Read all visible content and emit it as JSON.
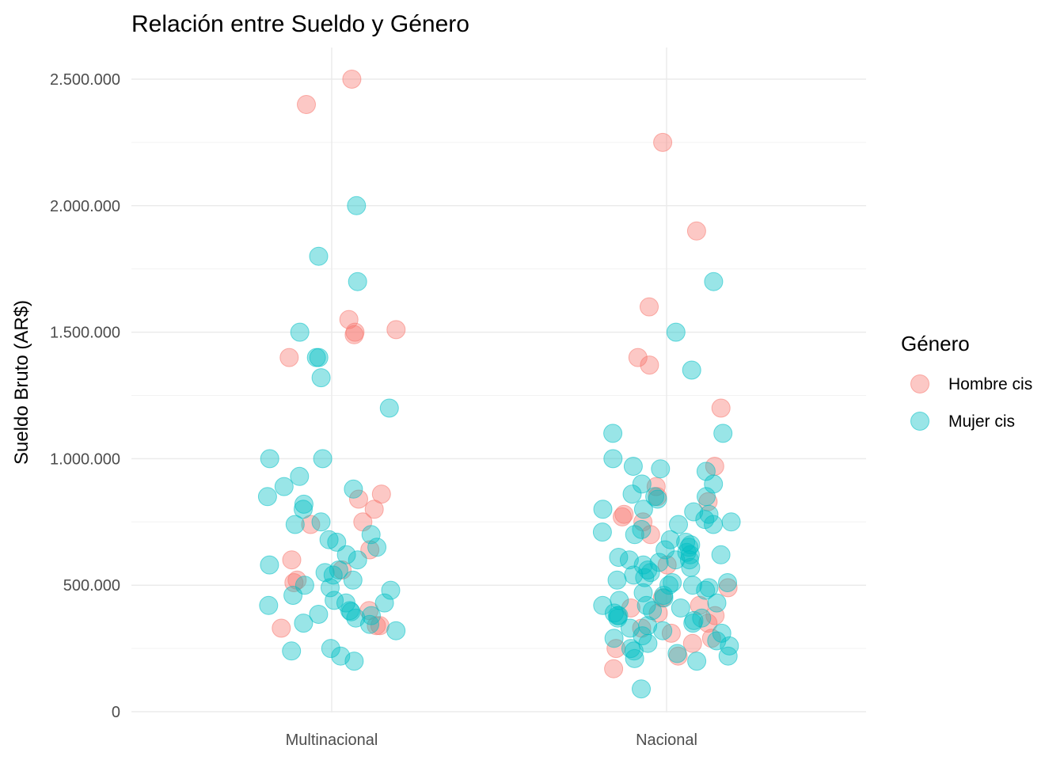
{
  "chart_data": {
    "type": "scatter",
    "title": "Relación entre Sueldo y Género",
    "xlabel": "",
    "ylabel": "Sueldo Bruto (AR$)",
    "categories": [
      "Multinacional",
      "Nacional"
    ],
    "ylim": [
      0,
      2500000
    ],
    "yticks": [
      0,
      500000,
      1000000,
      1500000,
      2000000,
      2500000
    ],
    "ytick_labels": [
      "0",
      "500.000",
      "1.000.000",
      "1.500.000",
      "2.000.000",
      "2.500.000"
    ],
    "grid": true,
    "jitter": true,
    "legend": {
      "title": "Género",
      "position": "right"
    },
    "series": [
      {
        "name": "Hombre cis",
        "color": "#F8766D",
        "points": [
          {
            "x": "Multinacional",
            "y": 2500000
          },
          {
            "x": "Multinacional",
            "y": 2400000
          },
          {
            "x": "Multinacional",
            "y": 1550000
          },
          {
            "x": "Multinacional",
            "y": 1510000
          },
          {
            "x": "Multinacional",
            "y": 1500000
          },
          {
            "x": "Multinacional",
            "y": 1490000
          },
          {
            "x": "Multinacional",
            "y": 1400000
          },
          {
            "x": "Multinacional",
            "y": 860000
          },
          {
            "x": "Multinacional",
            "y": 840000
          },
          {
            "x": "Multinacional",
            "y": 800000
          },
          {
            "x": "Multinacional",
            "y": 750000
          },
          {
            "x": "Multinacional",
            "y": 740000
          },
          {
            "x": "Multinacional",
            "y": 640000
          },
          {
            "x": "Multinacional",
            "y": 600000
          },
          {
            "x": "Multinacional",
            "y": 560000
          },
          {
            "x": "Multinacional",
            "y": 520000
          },
          {
            "x": "Multinacional",
            "y": 510000
          },
          {
            "x": "Multinacional",
            "y": 400000
          },
          {
            "x": "Multinacional",
            "y": 340000
          },
          {
            "x": "Multinacional",
            "y": 340000
          },
          {
            "x": "Multinacional",
            "y": 330000
          },
          {
            "x": "Nacional",
            "y": 2250000
          },
          {
            "x": "Nacional",
            "y": 1900000
          },
          {
            "x": "Nacional",
            "y": 1600000
          },
          {
            "x": "Nacional",
            "y": 1400000
          },
          {
            "x": "Nacional",
            "y": 1370000
          },
          {
            "x": "Nacional",
            "y": 1200000
          },
          {
            "x": "Nacional",
            "y": 970000
          },
          {
            "x": "Nacional",
            "y": 890000
          },
          {
            "x": "Nacional",
            "y": 850000
          },
          {
            "x": "Nacional",
            "y": 830000
          },
          {
            "x": "Nacional",
            "y": 780000
          },
          {
            "x": "Nacional",
            "y": 770000
          },
          {
            "x": "Nacional",
            "y": 750000
          },
          {
            "x": "Nacional",
            "y": 700000
          },
          {
            "x": "Nacional",
            "y": 580000
          },
          {
            "x": "Nacional",
            "y": 490000
          },
          {
            "x": "Nacional",
            "y": 450000
          },
          {
            "x": "Nacional",
            "y": 420000
          },
          {
            "x": "Nacional",
            "y": 410000
          },
          {
            "x": "Nacional",
            "y": 390000
          },
          {
            "x": "Nacional",
            "y": 380000
          },
          {
            "x": "Nacional",
            "y": 350000
          },
          {
            "x": "Nacional",
            "y": 330000
          },
          {
            "x": "Nacional",
            "y": 310000
          },
          {
            "x": "Nacional",
            "y": 290000
          },
          {
            "x": "Nacional",
            "y": 270000
          },
          {
            "x": "Nacional",
            "y": 250000
          },
          {
            "x": "Nacional",
            "y": 220000
          },
          {
            "x": "Nacional",
            "y": 170000
          }
        ]
      },
      {
        "name": "Mujer cis",
        "color": "#00BFC4",
        "points": [
          {
            "x": "Multinacional",
            "y": 2000000
          },
          {
            "x": "Multinacional",
            "y": 1800000
          },
          {
            "x": "Multinacional",
            "y": 1700000
          },
          {
            "x": "Multinacional",
            "y": 1500000
          },
          {
            "x": "Multinacional",
            "y": 1400000
          },
          {
            "x": "Multinacional",
            "y": 1400000
          },
          {
            "x": "Multinacional",
            "y": 1320000
          },
          {
            "x": "Multinacional",
            "y": 1200000
          },
          {
            "x": "Multinacional",
            "y": 1000000
          },
          {
            "x": "Multinacional",
            "y": 1000000
          },
          {
            "x": "Multinacional",
            "y": 930000
          },
          {
            "x": "Multinacional",
            "y": 890000
          },
          {
            "x": "Multinacional",
            "y": 880000
          },
          {
            "x": "Multinacional",
            "y": 850000
          },
          {
            "x": "Multinacional",
            "y": 820000
          },
          {
            "x": "Multinacional",
            "y": 800000
          },
          {
            "x": "Multinacional",
            "y": 750000
          },
          {
            "x": "Multinacional",
            "y": 740000
          },
          {
            "x": "Multinacional",
            "y": 700000
          },
          {
            "x": "Multinacional",
            "y": 680000
          },
          {
            "x": "Multinacional",
            "y": 670000
          },
          {
            "x": "Multinacional",
            "y": 650000
          },
          {
            "x": "Multinacional",
            "y": 620000
          },
          {
            "x": "Multinacional",
            "y": 600000
          },
          {
            "x": "Multinacional",
            "y": 580000
          },
          {
            "x": "Multinacional",
            "y": 560000
          },
          {
            "x": "Multinacional",
            "y": 550000
          },
          {
            "x": "Multinacional",
            "y": 540000
          },
          {
            "x": "Multinacional",
            "y": 520000
          },
          {
            "x": "Multinacional",
            "y": 500000
          },
          {
            "x": "Multinacional",
            "y": 490000
          },
          {
            "x": "Multinacional",
            "y": 480000
          },
          {
            "x": "Multinacional",
            "y": 460000
          },
          {
            "x": "Multinacional",
            "y": 440000
          },
          {
            "x": "Multinacional",
            "y": 430000
          },
          {
            "x": "Multinacional",
            "y": 430000
          },
          {
            "x": "Multinacional",
            "y": 420000
          },
          {
            "x": "Multinacional",
            "y": 400000
          },
          {
            "x": "Multinacional",
            "y": 395000
          },
          {
            "x": "Multinacional",
            "y": 385000
          },
          {
            "x": "Multinacional",
            "y": 380000
          },
          {
            "x": "Multinacional",
            "y": 370000
          },
          {
            "x": "Multinacional",
            "y": 350000
          },
          {
            "x": "Multinacional",
            "y": 345000
          },
          {
            "x": "Multinacional",
            "y": 320000
          },
          {
            "x": "Multinacional",
            "y": 250000
          },
          {
            "x": "Multinacional",
            "y": 240000
          },
          {
            "x": "Multinacional",
            "y": 220000
          },
          {
            "x": "Multinacional",
            "y": 200000
          },
          {
            "x": "Nacional",
            "y": 1700000
          },
          {
            "x": "Nacional",
            "y": 1500000
          },
          {
            "x": "Nacional",
            "y": 1350000
          },
          {
            "x": "Nacional",
            "y": 1100000
          },
          {
            "x": "Nacional",
            "y": 1100000
          },
          {
            "x": "Nacional",
            "y": 1000000
          },
          {
            "x": "Nacional",
            "y": 970000
          },
          {
            "x": "Nacional",
            "y": 960000
          },
          {
            "x": "Nacional",
            "y": 950000
          },
          {
            "x": "Nacional",
            "y": 900000
          },
          {
            "x": "Nacional",
            "y": 900000
          },
          {
            "x": "Nacional",
            "y": 860000
          },
          {
            "x": "Nacional",
            "y": 850000
          },
          {
            "x": "Nacional",
            "y": 850000
          },
          {
            "x": "Nacional",
            "y": 840000
          },
          {
            "x": "Nacional",
            "y": 800000
          },
          {
            "x": "Nacional",
            "y": 800000
          },
          {
            "x": "Nacional",
            "y": 790000
          },
          {
            "x": "Nacional",
            "y": 780000
          },
          {
            "x": "Nacional",
            "y": 760000
          },
          {
            "x": "Nacional",
            "y": 750000
          },
          {
            "x": "Nacional",
            "y": 740000
          },
          {
            "x": "Nacional",
            "y": 740000
          },
          {
            "x": "Nacional",
            "y": 720000
          },
          {
            "x": "Nacional",
            "y": 710000
          },
          {
            "x": "Nacional",
            "y": 700000
          },
          {
            "x": "Nacional",
            "y": 680000
          },
          {
            "x": "Nacional",
            "y": 670000
          },
          {
            "x": "Nacional",
            "y": 660000
          },
          {
            "x": "Nacional",
            "y": 650000
          },
          {
            "x": "Nacional",
            "y": 640000
          },
          {
            "x": "Nacional",
            "y": 630000
          },
          {
            "x": "Nacional",
            "y": 620000
          },
          {
            "x": "Nacional",
            "y": 620000
          },
          {
            "x": "Nacional",
            "y": 610000
          },
          {
            "x": "Nacional",
            "y": 600000
          },
          {
            "x": "Nacional",
            "y": 600000
          },
          {
            "x": "Nacional",
            "y": 600000
          },
          {
            "x": "Nacional",
            "y": 590000
          },
          {
            "x": "Nacional",
            "y": 580000
          },
          {
            "x": "Nacional",
            "y": 570000
          },
          {
            "x": "Nacional",
            "y": 560000
          },
          {
            "x": "Nacional",
            "y": 550000
          },
          {
            "x": "Nacional",
            "y": 540000
          },
          {
            "x": "Nacional",
            "y": 530000
          },
          {
            "x": "Nacional",
            "y": 520000
          },
          {
            "x": "Nacional",
            "y": 510000
          },
          {
            "x": "Nacional",
            "y": 510000
          },
          {
            "x": "Nacional",
            "y": 500000
          },
          {
            "x": "Nacional",
            "y": 500000
          },
          {
            "x": "Nacional",
            "y": 490000
          },
          {
            "x": "Nacional",
            "y": 480000
          },
          {
            "x": "Nacional",
            "y": 470000
          },
          {
            "x": "Nacional",
            "y": 460000
          },
          {
            "x": "Nacional",
            "y": 450000
          },
          {
            "x": "Nacional",
            "y": 440000
          },
          {
            "x": "Nacional",
            "y": 430000
          },
          {
            "x": "Nacional",
            "y": 420000
          },
          {
            "x": "Nacional",
            "y": 420000
          },
          {
            "x": "Nacional",
            "y": 410000
          },
          {
            "x": "Nacional",
            "y": 400000
          },
          {
            "x": "Nacional",
            "y": 390000
          },
          {
            "x": "Nacional",
            "y": 380000
          },
          {
            "x": "Nacional",
            "y": 380000
          },
          {
            "x": "Nacional",
            "y": 370000
          },
          {
            "x": "Nacional",
            "y": 370000
          },
          {
            "x": "Nacional",
            "y": 360000
          },
          {
            "x": "Nacional",
            "y": 350000
          },
          {
            "x": "Nacional",
            "y": 340000
          },
          {
            "x": "Nacional",
            "y": 330000
          },
          {
            "x": "Nacional",
            "y": 320000
          },
          {
            "x": "Nacional",
            "y": 310000
          },
          {
            "x": "Nacional",
            "y": 300000
          },
          {
            "x": "Nacional",
            "y": 290000
          },
          {
            "x": "Nacional",
            "y": 280000
          },
          {
            "x": "Nacional",
            "y": 270000
          },
          {
            "x": "Nacional",
            "y": 260000
          },
          {
            "x": "Nacional",
            "y": 250000
          },
          {
            "x": "Nacional",
            "y": 240000
          },
          {
            "x": "Nacional",
            "y": 230000
          },
          {
            "x": "Nacional",
            "y": 220000
          },
          {
            "x": "Nacional",
            "y": 210000
          },
          {
            "x": "Nacional",
            "y": 200000
          },
          {
            "x": "Nacional",
            "y": 90000
          }
        ]
      }
    ]
  }
}
